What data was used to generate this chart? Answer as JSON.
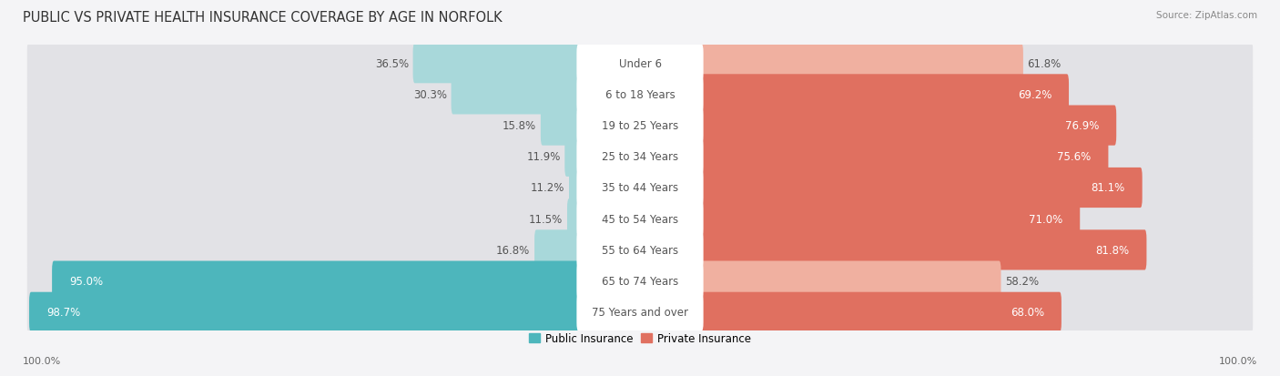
{
  "title": "PUBLIC VS PRIVATE HEALTH INSURANCE COVERAGE BY AGE IN NORFOLK",
  "source": "Source: ZipAtlas.com",
  "categories": [
    "Under 6",
    "6 to 18 Years",
    "19 to 25 Years",
    "25 to 34 Years",
    "35 to 44 Years",
    "45 to 54 Years",
    "55 to 64 Years",
    "65 to 74 Years",
    "75 Years and over"
  ],
  "public_values": [
    36.5,
    30.3,
    15.8,
    11.9,
    11.2,
    11.5,
    16.8,
    95.0,
    98.7
  ],
  "private_values": [
    61.8,
    69.2,
    76.9,
    75.6,
    81.1,
    71.0,
    81.8,
    58.2,
    68.0
  ],
  "public_color_strong": "#4db6bc",
  "public_color_light": "#a8d8da",
  "private_color_strong": "#e07060",
  "private_color_light": "#f0b0a0",
  "row_bg_color": "#e2e2e6",
  "background_color": "#f4f4f6",
  "title_fontsize": 10.5,
  "label_fontsize": 8.5,
  "value_fontsize": 8.5,
  "legend_label_public": "Public Insurance",
  "legend_label_private": "Private Insurance",
  "axis_label_left": "100.0%",
  "axis_label_right": "100.0%"
}
